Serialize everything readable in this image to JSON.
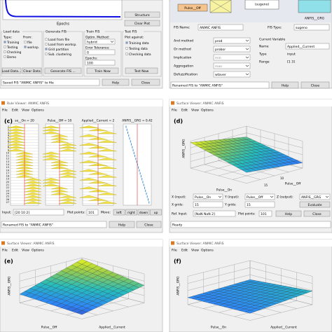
{
  "menu": [
    "File",
    "Edit",
    "View",
    "Options"
  ],
  "anfis_editor": {
    "x_label": "Epochs",
    "structure": "Structure",
    "clear_plot": "Clear Plot",
    "load_data": {
      "title": "Load data",
      "type": "Type:",
      "from": "From:",
      "training": "Training",
      "testing": "Testing",
      "checking": "Checking",
      "demo": "Demo",
      "file": "file",
      "worksp": "worksp.",
      "load_btn": "Load Data...",
      "clear_btn": "Clear Data"
    },
    "generate": {
      "title": "Generate FIS",
      "load_file": "Load from file",
      "load_worksp": "Load from worksp.",
      "grid": "Grid partition",
      "sub": "Sub. clustering",
      "btn": "Generate FIS ..."
    },
    "train": {
      "title": "Train FIS",
      "optim": "Optim. Method:",
      "method": "hybrid",
      "tol_label": "Error Tolerance:",
      "tol": 0,
      "epochs_label": "Epochs:",
      "epochs": 100,
      "btn": "Train Now"
    },
    "test": {
      "title": "Test FIS",
      "plot_against": "Plot against:",
      "training": "Training data",
      "testing": "Testing data",
      "checking": "Checking data",
      "btn": "Test Now"
    },
    "status": "Saved FIS \"ANMIC ANFIS\" to file",
    "help": "Help",
    "close": "Close"
  },
  "fis_editor": {
    "input_box": "Pulse__Off",
    "fis_box": "(sugeno)",
    "output_box": "ANFIS__GRG",
    "fis_name_label": "FIS Name:",
    "fis_name": "ANMIC ANFIS",
    "fis_type_label": "FIS Type:",
    "fis_type": "sugeno",
    "methods": [
      [
        "And method",
        "prod"
      ],
      [
        "Or method",
        "probor"
      ],
      [
        "Implication",
        "min"
      ],
      [
        "Aggregation",
        "max"
      ],
      [
        "Defuzzification",
        "wtaver"
      ]
    ],
    "current_variable": "Current Variable",
    "name_label": "Name",
    "name": "Applied__Current",
    "type_label": "Type",
    "type": "input",
    "range_label": "Range",
    "range": "[1 3]",
    "status": "Renamed FIS to \"ANMIC ANFIS\"",
    "help": "Help",
    "close": "Close"
  },
  "rule_viewer": {
    "title": "Rule Viewer: ANMIC ANFIS",
    "tag": "(c)",
    "headers": [
      "se__On = 20",
      "Pulse__Off = 10",
      "Applied__Current = 2",
      "ANFIS__GRG = 0.42"
    ],
    "rules": [
      1,
      2,
      3,
      4,
      5,
      6,
      7,
      8,
      9,
      10,
      11,
      12,
      13,
      14,
      15,
      16,
      17,
      18,
      19,
      20,
      21,
      22,
      23,
      24,
      25,
      26,
      27
    ],
    "input_label": "Input:",
    "input": "[20 10 2]",
    "plot_points_label": "Plot points:",
    "plot_points": 101,
    "move_label": "Move:",
    "move": [
      "left",
      "right",
      "down",
      "up"
    ],
    "status": "Renamed FIS to \"ANMIC ANFIS\"",
    "help": "Help",
    "close": "Close"
  },
  "surface_d": {
    "title": "Surface Viewer: ANMIC ANFIS",
    "tag": "(d)",
    "z_label": "ANFIS__GRG",
    "x_label": "Pulse__On",
    "y_label": "Pulse__Off",
    "ticks": [
      15,
      10
    ],
    "x_input_label": "X (input):",
    "x_input": "Pulse__On",
    "y_input_label": "Y (input):",
    "y_input": "Pulse__Off",
    "z_output_label": "Z (output):",
    "z_output": "ANFIS__GRG",
    "x_grids_label": "X grids:",
    "x_grids": 15,
    "y_grids_label": "Y grids:",
    "y_grids": 15,
    "evaluate": "Evaluate",
    "ref_input_label": "Ref. Input:",
    "ref_input": "[NaN NaN 2]",
    "plot_points_label": "Plot points:",
    "plot_points": 101,
    "help": "Help",
    "close": "Close",
    "status": "Ready"
  },
  "surface_e": {
    "title": "Surface Viewer: ANMIC ANFIS",
    "tag": "(e)",
    "z_label": "ANFIS__GRG",
    "x_label": "Pulse__Off",
    "y_label": "Applied__Current"
  },
  "surface_f": {
    "title": "Surface Viewer: ANMIC ANFIS",
    "tag": "(f)",
    "z_label": "ANFIS__GRG",
    "x_label": "Pulse__On",
    "y_label": "Applied__Current"
  }
}
